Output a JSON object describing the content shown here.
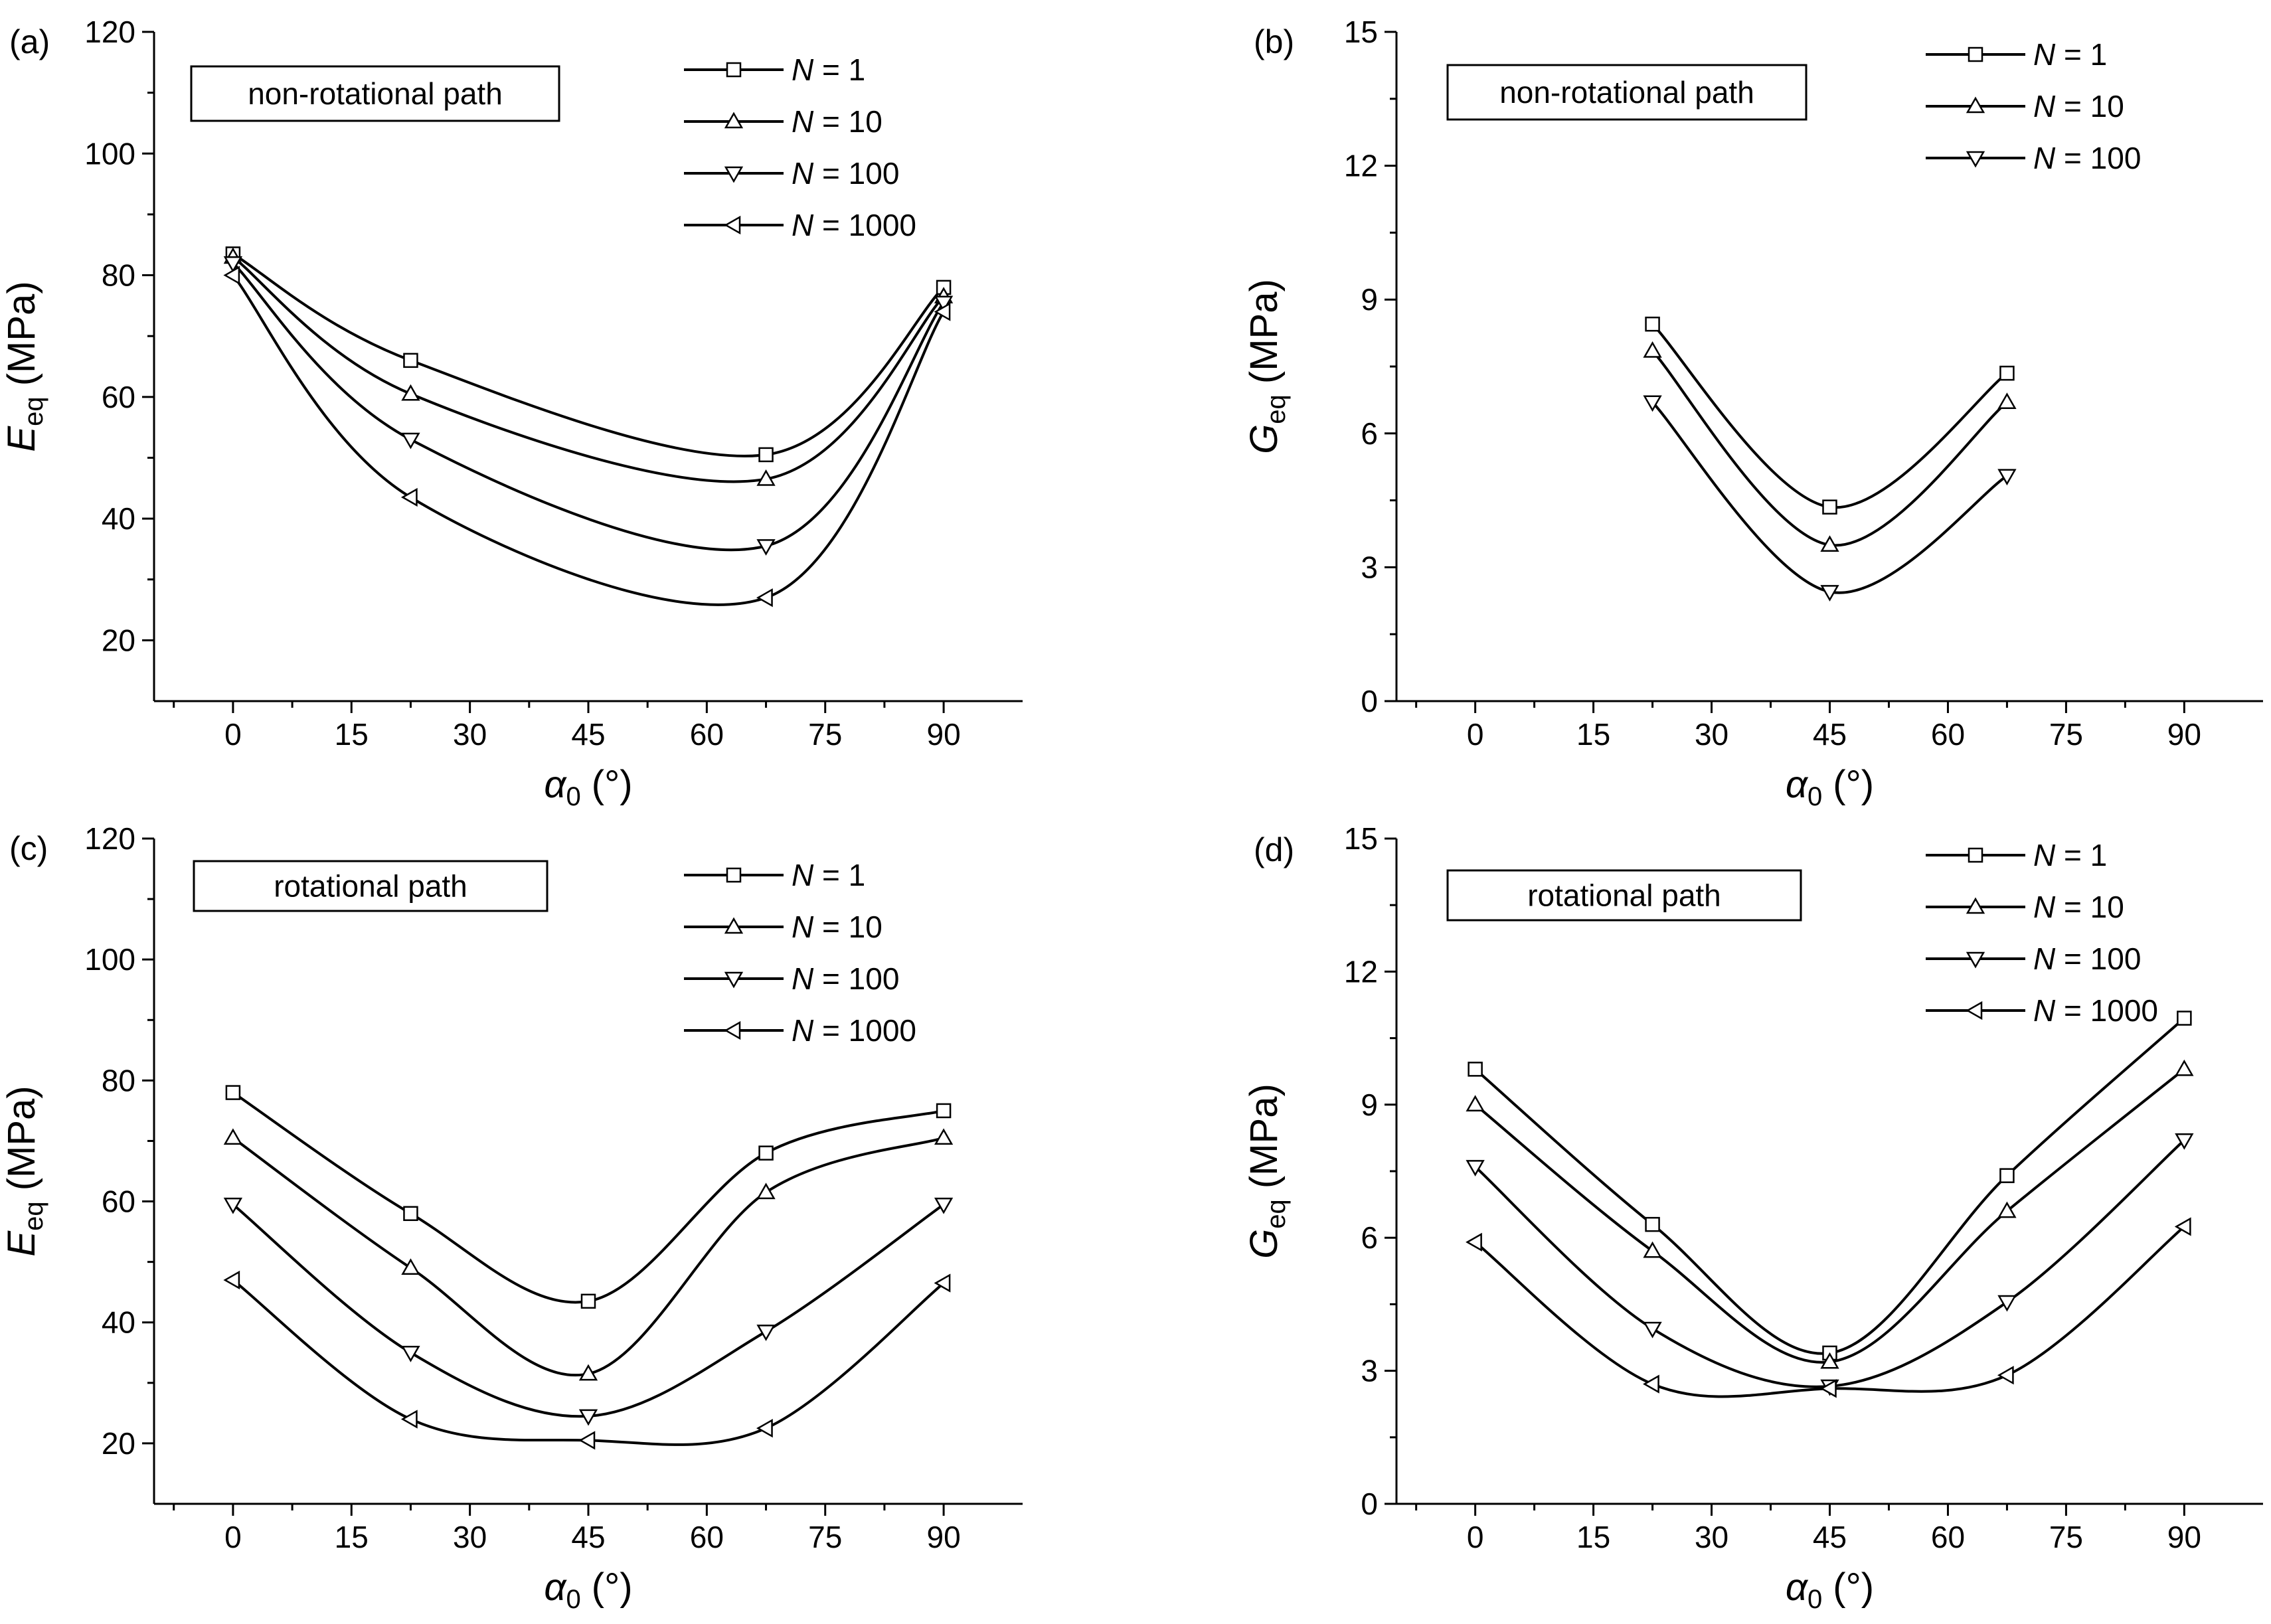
{
  "figure": {
    "x_axis_symbol": "α",
    "x_axis_subscript": "0",
    "x_axis_unit": " (°)",
    "legend_prefix": "N",
    "legend_equals": " = "
  },
  "chart_data": [
    {
      "type": "line",
      "panel_label": "(a)",
      "path_label": "non-rotational path",
      "y_symbol": "E",
      "y_subscript": "eq",
      "y_unit": " (MPa)",
      "xlim": [
        -10,
        100
      ],
      "ylim": [
        10,
        120
      ],
      "xticks": [
        0,
        15,
        30,
        45,
        60,
        75,
        90
      ],
      "yticks": [
        20,
        40,
        60,
        80,
        100,
        120
      ],
      "x": [
        0,
        22.5,
        67.5,
        90
      ],
      "series": [
        {
          "name": "1",
          "marker": "square",
          "values": [
            83.5,
            66,
            50.5,
            78
          ]
        },
        {
          "name": "10",
          "marker": "triangle-up",
          "values": [
            83,
            60.5,
            46.5,
            76.5
          ]
        },
        {
          "name": "100",
          "marker": "triangle-down",
          "values": [
            82,
            53,
            35.5,
            75.5
          ]
        },
        {
          "name": "1000",
          "marker": "triangle-left",
          "values": [
            80,
            43.5,
            27,
            74
          ]
        }
      ]
    },
    {
      "type": "line",
      "panel_label": "(b)",
      "path_label": "non-rotational path",
      "y_symbol": "G",
      "y_subscript": "eq",
      "y_unit": " (MPa)",
      "xlim": [
        -10,
        100
      ],
      "ylim": [
        0,
        15
      ],
      "xticks": [
        0,
        15,
        30,
        45,
        60,
        75,
        90
      ],
      "yticks": [
        0,
        3,
        6,
        9,
        12,
        15
      ],
      "x": [
        22.5,
        45,
        67.5
      ],
      "series": [
        {
          "name": "1",
          "marker": "square",
          "values": [
            8.45,
            4.35,
            7.35
          ]
        },
        {
          "name": "10",
          "marker": "triangle-up",
          "values": [
            7.85,
            3.5,
            6.7
          ]
        },
        {
          "name": "100",
          "marker": "triangle-down",
          "values": [
            6.7,
            2.45,
            5.05
          ]
        }
      ]
    },
    {
      "type": "line",
      "panel_label": "(c)",
      "path_label": "rotational path",
      "y_symbol": "E",
      "y_subscript": "eq",
      "y_unit": " (MPa)",
      "xlim": [
        -10,
        100
      ],
      "ylim": [
        10,
        120
      ],
      "xticks": [
        0,
        15,
        30,
        45,
        60,
        75,
        90
      ],
      "yticks": [
        20,
        40,
        60,
        80,
        100,
        120
      ],
      "x": [
        0,
        22.5,
        45,
        67.5,
        90
      ],
      "series": [
        {
          "name": "1",
          "marker": "square",
          "values": [
            78,
            58,
            43.5,
            68,
            75
          ]
        },
        {
          "name": "10",
          "marker": "triangle-up",
          "values": [
            70.5,
            49,
            31.5,
            61.5,
            70.5
          ]
        },
        {
          "name": "100",
          "marker": "triangle-down",
          "values": [
            59.5,
            35,
            24.5,
            38.5,
            59.5
          ]
        },
        {
          "name": "1000",
          "marker": "triangle-left",
          "values": [
            47,
            24,
            20.5,
            22.5,
            46.5
          ]
        }
      ]
    },
    {
      "type": "line",
      "panel_label": "(d)",
      "path_label": "rotational path",
      "y_symbol": "G",
      "y_subscript": "eq",
      "y_unit": " (MPa)",
      "xlim": [
        -10,
        100
      ],
      "ylim": [
        0,
        15
      ],
      "xticks": [
        0,
        15,
        30,
        45,
        60,
        75,
        90
      ],
      "yticks": [
        0,
        3,
        6,
        9,
        12,
        15
      ],
      "x": [
        0,
        22.5,
        45,
        67.5,
        90
      ],
      "series": [
        {
          "name": "1",
          "marker": "square",
          "values": [
            9.8,
            6.3,
            3.4,
            7.4,
            10.95
          ]
        },
        {
          "name": "10",
          "marker": "triangle-up",
          "values": [
            9.0,
            5.7,
            3.2,
            6.6,
            9.8
          ]
        },
        {
          "name": "100",
          "marker": "triangle-down",
          "values": [
            7.6,
            3.95,
            2.65,
            4.55,
            8.2
          ]
        },
        {
          "name": "1000",
          "marker": "triangle-left",
          "values": [
            5.9,
            2.7,
            2.6,
            2.9,
            6.25
          ]
        }
      ]
    }
  ]
}
